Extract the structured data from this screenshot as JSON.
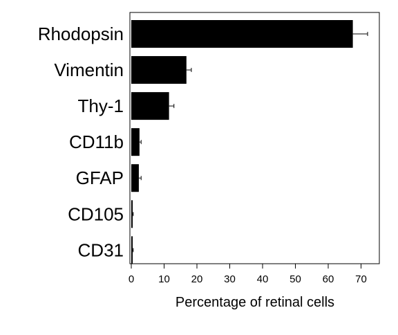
{
  "chart_data": {
    "type": "bar",
    "orientation": "horizontal",
    "categories": [
      "Rhodopsin",
      "Vimentin",
      "Thy-1",
      "CD11b",
      "GFAP",
      "CD105",
      "CD31"
    ],
    "values": [
      67.5,
      16.8,
      11.5,
      2.5,
      2.3,
      0.4,
      0.4
    ],
    "errors": [
      4.5,
      1.5,
      1.5,
      0.5,
      0.7,
      0.2,
      0.2
    ],
    "xlabel": "Percentage of retinal cells",
    "ylabel": "",
    "xlim": [
      0,
      75
    ],
    "xticks": [
      0,
      10,
      20,
      30,
      40,
      50,
      60,
      70
    ],
    "bar_color": "#000000",
    "grid": false
  }
}
